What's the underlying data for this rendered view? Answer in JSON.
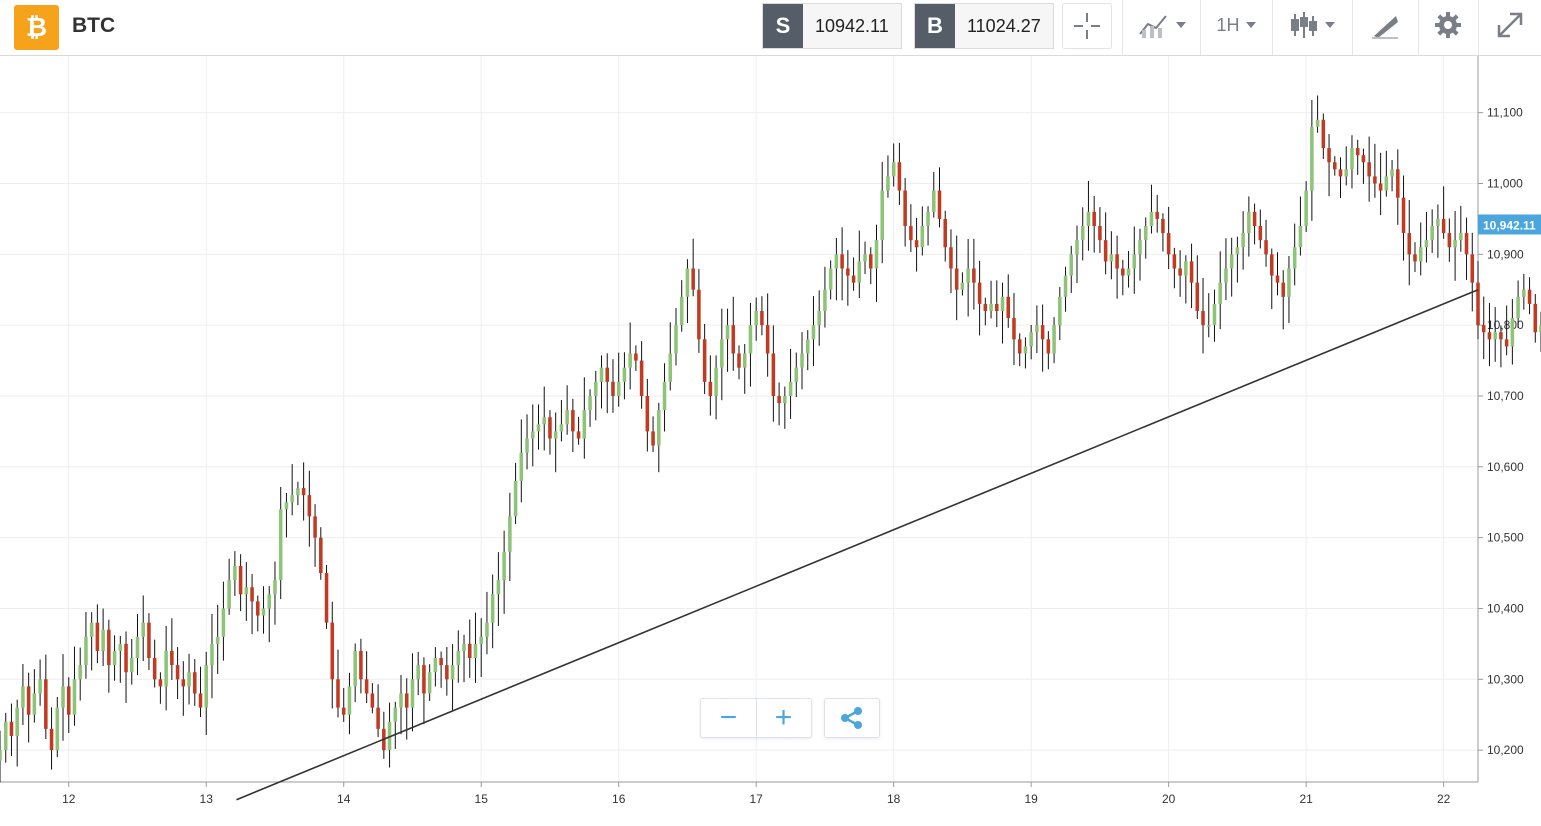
{
  "header": {
    "logo_glyph": "₿",
    "symbol": "BTC",
    "sell_label": "S",
    "sell_price": "10942.11",
    "buy_label": "B",
    "buy_price": "11024.27",
    "interval": "1H",
    "icons": [
      "crosshair-icon",
      "chart-type-icon",
      "candles-icon",
      "drawing-icon",
      "gear-icon",
      "expand-icon"
    ]
  },
  "zoom_controls": {
    "minus": "−",
    "plus": "+",
    "share_icon": "share-icon"
  },
  "colors": {
    "up": "#8dc478",
    "down": "#c23a22",
    "wick": "#111111",
    "grid": "#eeeeee",
    "last_price_bg": "#4ba6dd",
    "brand": "#f7a21b",
    "trendline": "#333333"
  },
  "chart_data": {
    "type": "candlestick",
    "x_ticks": [
      "12",
      "13",
      "14",
      "15",
      "16",
      "17",
      "18",
      "19",
      "20",
      "21",
      "22"
    ],
    "y_ticks": [
      "10,200",
      "10,300",
      "10,400",
      "10,500",
      "10,600",
      "10,700",
      "10,800",
      "10,900",
      "11,000",
      "11,100"
    ],
    "ylim": [
      10155,
      11180
    ],
    "x_day_range": [
      11.5,
      22.25
    ],
    "last_price_label": "10,942.11",
    "last_price": 10942.11,
    "trendline": {
      "from": {
        "day": 13.22,
        "price": 10130
      },
      "to": {
        "day": 22.25,
        "price": 10850
      }
    },
    "grid": true,
    "candles_per_day": 24,
    "start_day": 11.5,
    "closes": [
      10200,
      10240,
      10220,
      10260,
      10290,
      10250,
      10280,
      10300,
      10230,
      10200,
      10260,
      10290,
      10250,
      10300,
      10320,
      10360,
      10380,
      10340,
      10370,
      10320,
      10340,
      10350,
      10310,
      10330,
      10360,
      10380,
      10330,
      10300,
      10290,
      10340,
      10320,
      10300,
      10290,
      10310,
      10280,
      10260,
      10320,
      10350,
      10360,
      10400,
      10440,
      10460,
      10420,
      10430,
      10410,
      10390,
      10400,
      10420,
      10440,
      10540,
      10550,
      10560,
      10570,
      10560,
      10530,
      10500,
      10450,
      10380,
      10300,
      10260,
      10250,
      10290,
      10340,
      10300,
      10280,
      10260,
      10230,
      10200,
      10240,
      10260,
      10280,
      10260,
      10300,
      10320,
      10280,
      10310,
      10330,
      10320,
      10300,
      10320,
      10340,
      10350,
      10330,
      10350,
      10360,
      10380,
      10420,
      10440,
      10480,
      10530,
      10580,
      10620,
      10640,
      10650,
      10660,
      10670,
      10640,
      10650,
      10660,
      10680,
      10650,
      10640,
      10680,
      10700,
      10720,
      10740,
      10720,
      10700,
      10720,
      10740,
      10760,
      10750,
      10700,
      10650,
      10630,
      10680,
      10720,
      10760,
      10800,
      10840,
      10880,
      10850,
      10780,
      10720,
      10700,
      10740,
      10780,
      10800,
      10760,
      10740,
      10760,
      10800,
      10820,
      10800,
      10760,
      10700,
      10690,
      10700,
      10720,
      10740,
      10760,
      10780,
      10800,
      10820,
      10850,
      10880,
      10900,
      10880,
      10870,
      10860,
      10890,
      10900,
      10880,
      10920,
      10990,
      11010,
      11030,
      10990,
      10940,
      10920,
      10910,
      10940,
      10960,
      10990,
      10950,
      10910,
      10880,
      10850,
      10860,
      10880,
      10860,
      10830,
      10820,
      10830,
      10820,
      10840,
      10810,
      10780,
      10760,
      10770,
      10790,
      10800,
      10780,
      10760,
      10800,
      10840,
      10870,
      10900,
      10920,
      10940,
      10960,
      10940,
      10920,
      10890,
      10900,
      10880,
      10870,
      10880,
      10900,
      10920,
      10940,
      10960,
      10950,
      10930,
      10900,
      10880,
      10870,
      10890,
      10860,
      10820,
      10800,
      10800,
      10830,
      10860,
      10880,
      10900,
      10910,
      10930,
      10960,
      10940,
      10920,
      10900,
      10870,
      10860,
      10840,
      10880,
      10910,
      10940,
      10990,
      11080,
      11090,
      11050,
      11030,
      11020,
      11010,
      11020,
      11050,
      11040,
      11030,
      11010,
      11000,
      10990,
      11010,
      11020,
      10980,
      10930,
      10900,
      10890,
      10910,
      10920,
      10940,
      10950,
      10930,
      10910,
      10920,
      10930,
      10900,
      10860,
      10800,
      10790,
      10780,
      10790,
      10780,
      10770,
      10810,
      10840,
      10850,
      10830,
      10790,
      10800,
      10820,
      10860,
      10900,
      10920,
      10930,
      10920,
      10940
    ]
  }
}
